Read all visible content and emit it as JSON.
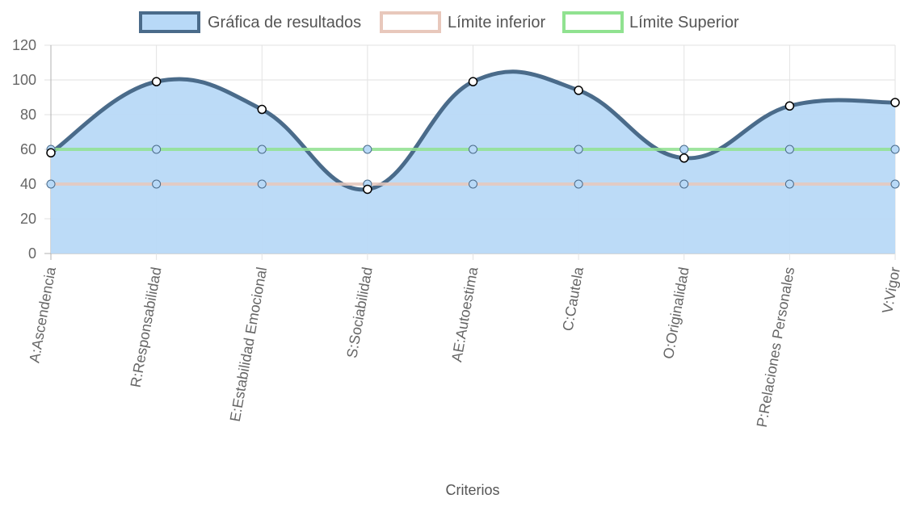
{
  "chart_data": {
    "type": "line",
    "categories": [
      "A:Ascendencia",
      "R:Responsabilidad",
      "E:Estabilidad Emocional",
      "S:Sociabilidad",
      "AE:Autoestima",
      "C:Cautela",
      "O:Originalidad",
      "P:Relaciones Personales",
      "V:Vigor"
    ],
    "series": [
      {
        "name": "Gráfica de resultados",
        "values": [
          58,
          99,
          83,
          37,
          99,
          94,
          55,
          85,
          87
        ],
        "line_color": "#4a6b8a",
        "fill_color": "#b8d9f7",
        "filled": true
      },
      {
        "name": "Límite inferior",
        "values": [
          40,
          40,
          40,
          40,
          40,
          40,
          40,
          40,
          40
        ],
        "line_color": "#e8c8bc",
        "fill_color": "#ffffff",
        "filled": false
      },
      {
        "name": "Límite Superior",
        "values": [
          60,
          60,
          60,
          60,
          60,
          60,
          60,
          60,
          60
        ],
        "line_color": "#90e290",
        "fill_color": "#ffffff",
        "filled": false
      }
    ],
    "xlabel": "Criterios",
    "ylabel": "",
    "ylim": [
      0,
      120
    ],
    "yticks": [
      0,
      20,
      40,
      60,
      80,
      100,
      120
    ],
    "grid": true,
    "legend_position": "top",
    "curve": "smooth"
  }
}
